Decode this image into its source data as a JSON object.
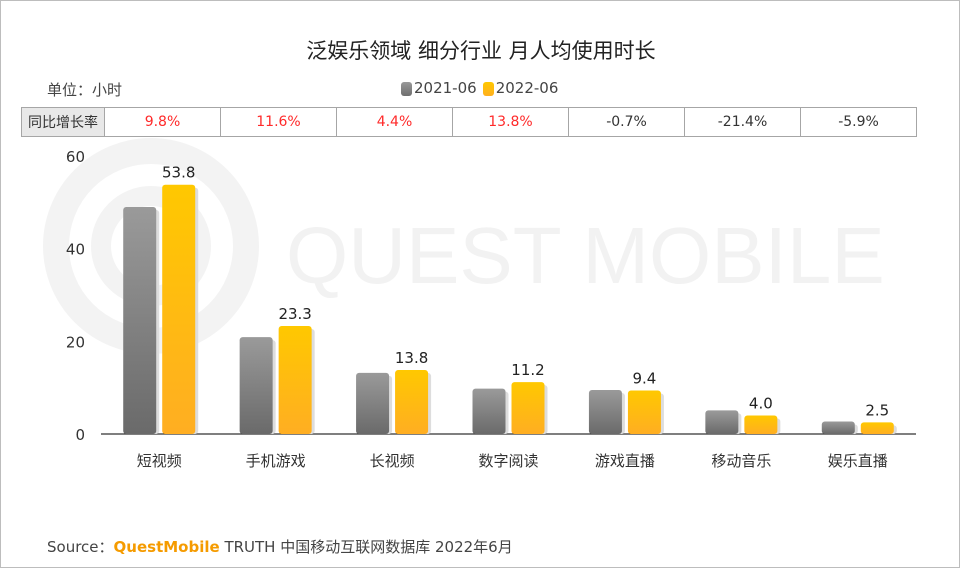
{
  "title": "泛娱乐领域 细分行业 月人均使用时长",
  "unit_label": "单位：小时",
  "yoy": {
    "header": "同比增长率",
    "values": [
      "9.8%",
      "11.6%",
      "4.4%",
      "13.8%",
      "-0.7%",
      "-21.4%",
      "-5.9%"
    ],
    "positive_color": "#ff2a2a",
    "negative_color": "#333333"
  },
  "watermark": "QUEST MOBILE",
  "source": {
    "prefix": "Source：",
    "brand": "QuestMobile",
    "text": " TRUTH 中国移动互联网数据库 2022年6月"
  },
  "chart_data": {
    "type": "bar",
    "title": "泛娱乐领域 细分行业 月人均使用时长",
    "categories": [
      "短视频",
      "手机游戏",
      "长视频",
      "数字阅读",
      "游戏直播",
      "移动音乐",
      "娱乐直播"
    ],
    "series": [
      {
        "name": "2021-06",
        "color": "#8c8c8c",
        "values": [
          49.0,
          20.9,
          13.2,
          9.8,
          9.5,
          5.1,
          2.7
        ]
      },
      {
        "name": "2022-06",
        "color": "#ffc000",
        "values": [
          53.8,
          23.3,
          13.8,
          11.2,
          9.4,
          4.0,
          2.5
        ],
        "labels": [
          "53.8",
          "23.3",
          "13.8",
          "11.2",
          "9.4",
          "4.0",
          "2.5"
        ]
      }
    ],
    "yticks": [
      "0",
      "20",
      "40",
      "60"
    ],
    "ylim": [
      0,
      60
    ],
    "grid": false,
    "legend": "top-center"
  }
}
